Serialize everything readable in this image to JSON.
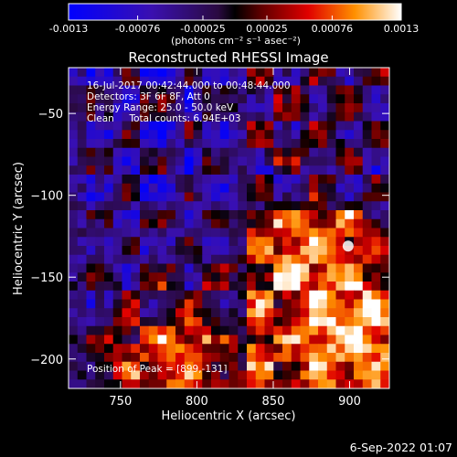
{
  "colorbar": {
    "tick_labels": [
      "-0.0013",
      "-0.00076",
      "-0.00025",
      "0.00025",
      "0.00076",
      "0.0013"
    ],
    "units_label": "(photons cm⁻² s⁻¹ asec⁻²)",
    "min": -0.0013,
    "max": 0.0013
  },
  "chart_data": {
    "type": "heatmap",
    "title": "Reconstructed RHESSI Image",
    "xlabel": "Heliocentric X (arcsec)",
    "ylabel": "Heliocentric Y (arcsec)",
    "xlim": [
      716,
      926
    ],
    "ylim": [
      -218,
      -22
    ],
    "x_ticks": [
      750,
      800,
      850,
      900
    ],
    "y_ticks": [
      -50,
      -100,
      -150,
      -200
    ],
    "x_tick_labels": [
      "750",
      "800",
      "850",
      "900"
    ],
    "y_tick_labels": [
      "−50",
      "−100",
      "−150",
      "−200"
    ],
    "annotations": [
      "16-Jul-2017 00:42:44.000 to 00:48:44.000",
      "Detectors: 3F 6F 8F, Att 0",
      "Energy Range: 25.0 - 50.0 keV",
      "Clean     Total counts: 6.94E+03"
    ],
    "peak_label": "Position of Peak = [899,-131]",
    "peak": [
      899,
      -131
    ]
  },
  "footer": {
    "date": "6-Sep-2022 01:07"
  }
}
